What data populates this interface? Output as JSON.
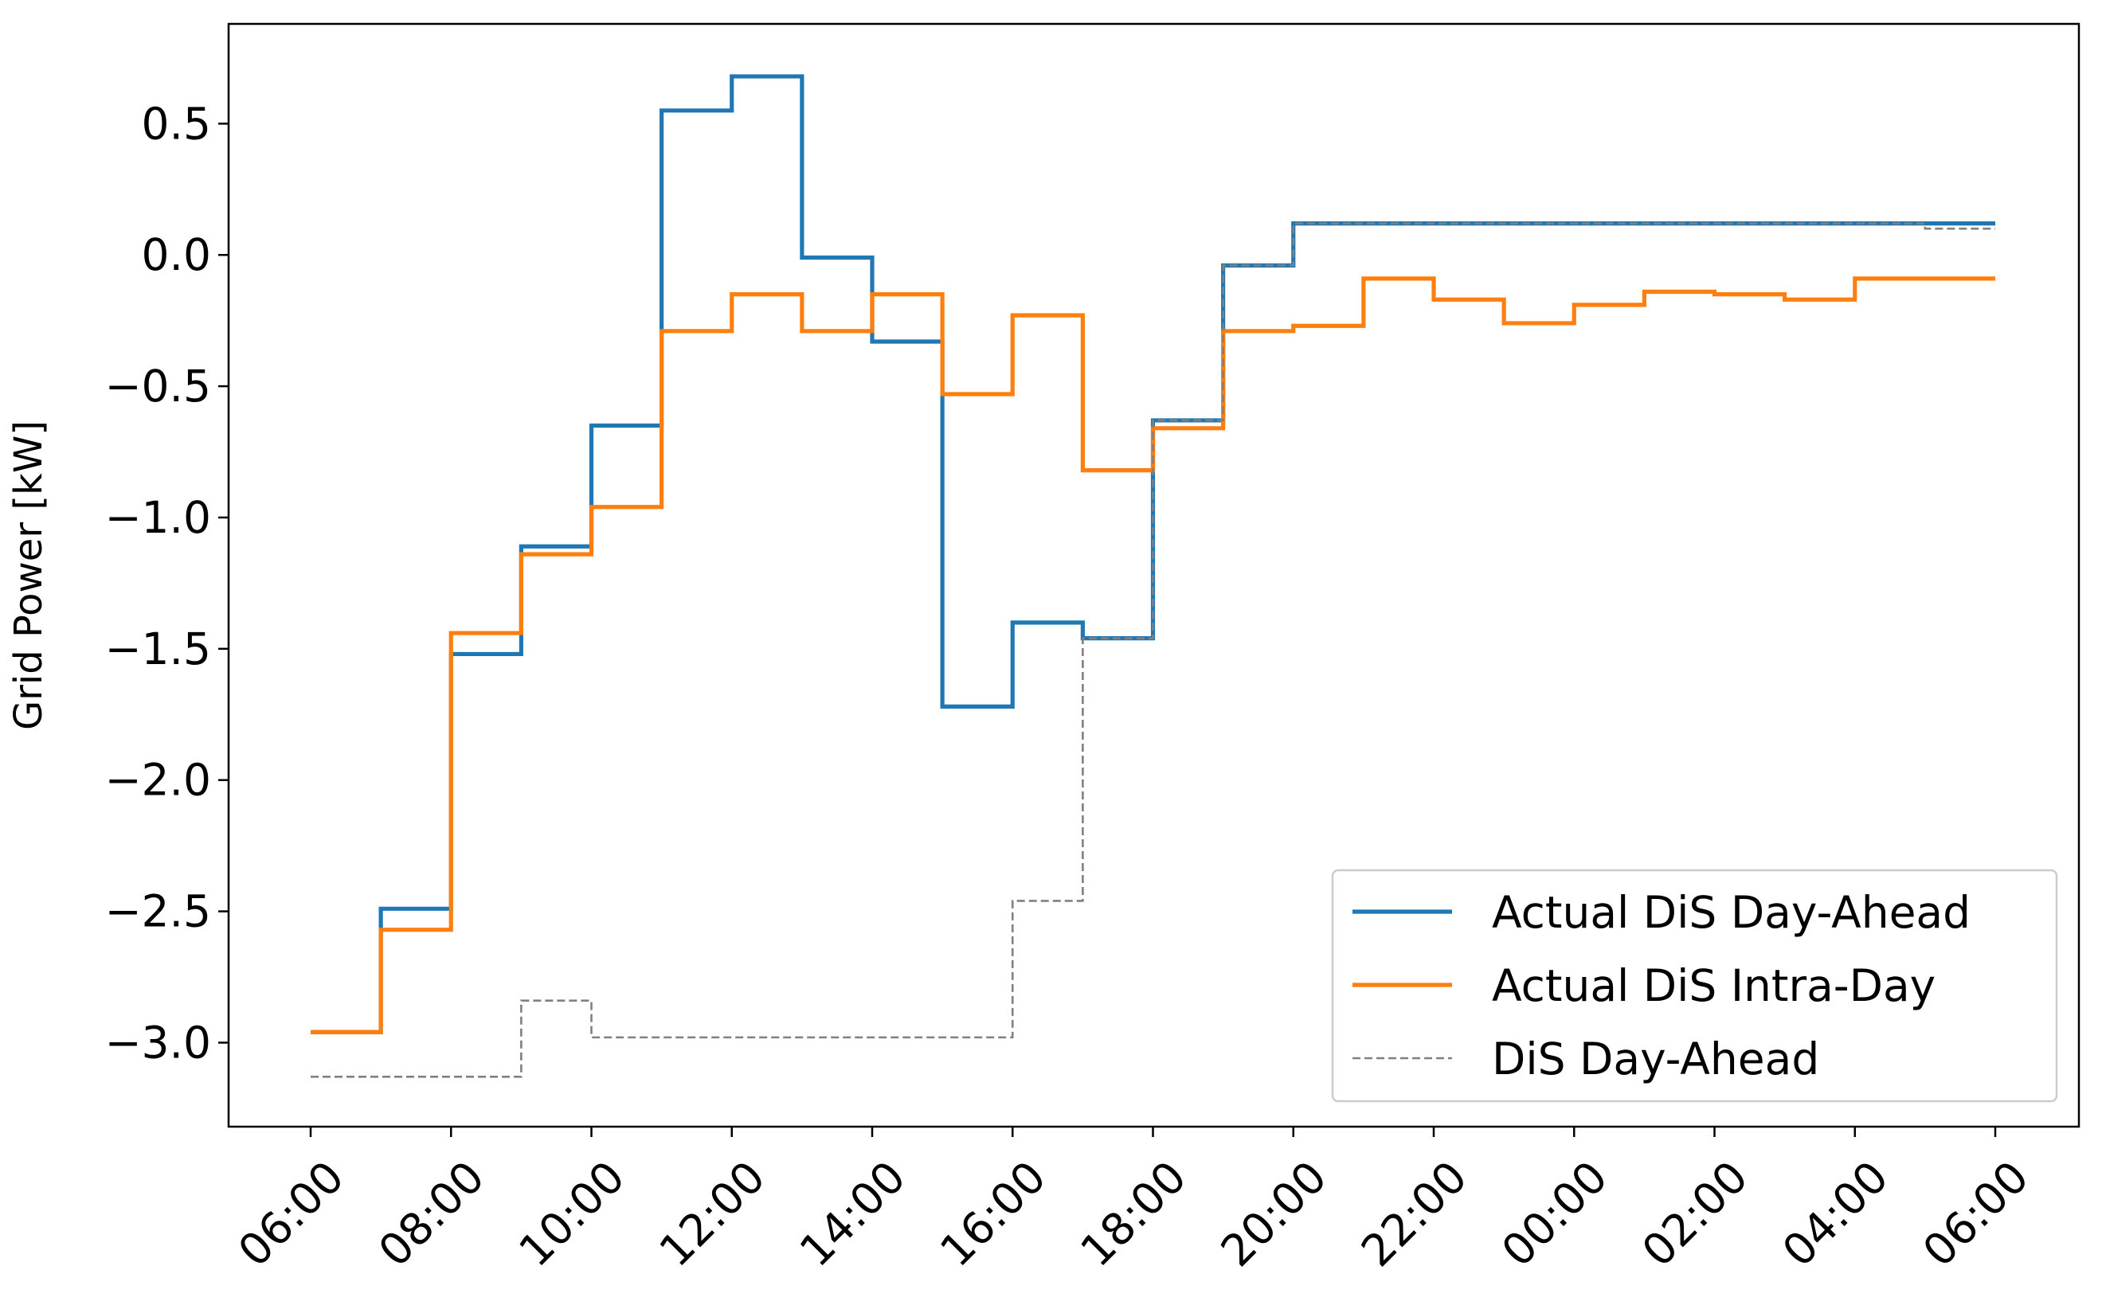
{
  "chart_data": {
    "type": "line",
    "step": "post",
    "title": "",
    "xlabel": "",
    "ylabel": "Grid Power [kW]",
    "ylim": [
      -3.32,
      0.88
    ],
    "yticks": [
      {
        "value": 0.5,
        "label": "0.5"
      },
      {
        "value": 0.0,
        "label": "0.0"
      },
      {
        "value": -0.5,
        "label": "−0.5"
      },
      {
        "value": -1.0,
        "label": "−1.0"
      },
      {
        "value": -1.5,
        "label": "−1.5"
      },
      {
        "value": -2.0,
        "label": "−2.0"
      },
      {
        "value": -2.5,
        "label": "−2.5"
      },
      {
        "value": -3.0,
        "label": "−3.0"
      }
    ],
    "xlim": [
      "06:00",
      "06:00 (+1 day)"
    ],
    "xticks": [
      "06:00",
      "08:00",
      "10:00",
      "12:00",
      "14:00",
      "16:00",
      "18:00",
      "20:00",
      "22:00",
      "00:00",
      "02:00",
      "04:00",
      "06:00"
    ],
    "x": [
      "06:00",
      "07:00",
      "08:00",
      "09:00",
      "10:00",
      "11:00",
      "12:00",
      "13:00",
      "14:00",
      "15:00",
      "16:00",
      "17:00",
      "18:00",
      "19:00",
      "20:00",
      "21:00",
      "22:00",
      "23:00",
      "00:00",
      "01:00",
      "02:00",
      "03:00",
      "04:00",
      "05:00",
      "06:00"
    ],
    "series": [
      {
        "name": "Actual DiS Day-Ahead",
        "color": "#1f77b4",
        "style": "solid",
        "values": [
          -2.96,
          -2.49,
          -1.52,
          -1.11,
          -0.65,
          0.55,
          0.68,
          -0.01,
          -0.33,
          -1.72,
          -1.4,
          -1.46,
          -0.63,
          -0.04,
          0.12,
          0.12,
          0.12,
          0.12,
          0.12,
          0.12,
          0.12,
          0.12,
          0.12,
          0.12,
          0.12
        ]
      },
      {
        "name": "Actual DiS Intra-Day",
        "color": "#ff7f0e",
        "style": "solid",
        "values": [
          -2.96,
          -2.57,
          -1.44,
          -1.14,
          -0.96,
          -0.29,
          -0.15,
          -0.29,
          -0.15,
          -0.53,
          -0.23,
          -0.82,
          -0.66,
          -0.29,
          -0.27,
          -0.09,
          -0.17,
          -0.26,
          -0.19,
          -0.14,
          -0.15,
          -0.17,
          -0.09,
          -0.09,
          -0.09
        ]
      },
      {
        "name": "DiS Day-Ahead",
        "color": "#808080",
        "style": "dashed",
        "values": [
          -3.13,
          -3.13,
          -3.13,
          -2.84,
          -2.98,
          -2.98,
          -2.98,
          -2.98,
          -2.98,
          -2.98,
          -2.46,
          -1.46,
          -0.63,
          -0.04,
          0.12,
          0.12,
          0.12,
          0.12,
          0.12,
          0.12,
          0.12,
          0.12,
          0.12,
          0.1,
          0.1
        ]
      }
    ],
    "grid": false,
    "legend": "lower-right"
  }
}
